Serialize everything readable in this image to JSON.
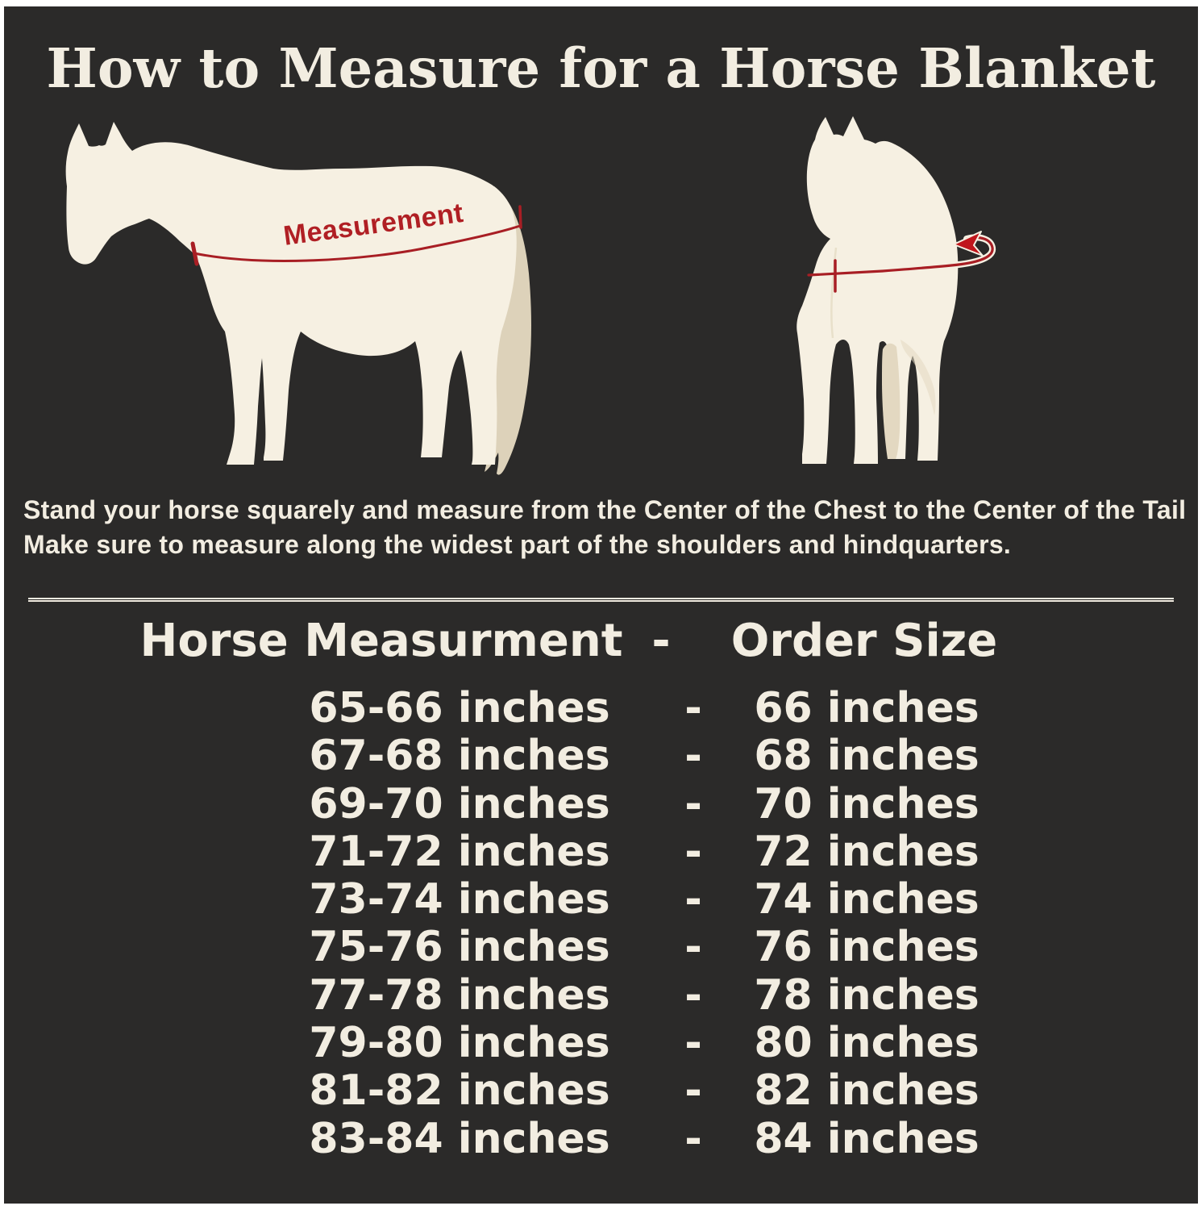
{
  "title": "How to Measure for a Horse Blanket",
  "colors": {
    "background": "#2b2a29",
    "border": "#ffffff",
    "cream_text": "#f2ede1",
    "horse_body": "#f6f0e2",
    "horse_shade": "#ddd2ba",
    "accent_red": "#a81e24"
  },
  "diagram": {
    "measurement_label": "Measurement",
    "side_horse_icon": "horse-side-view-silhouette",
    "front_horse_icon": "horse-front-view-silhouette"
  },
  "instructions": {
    "line1": "Stand your horse squarely and measure from the Center of the Chest to the Center of the Tail",
    "line2": "Make sure to measure along the widest part of the shoulders and hindquarters."
  },
  "size_table": {
    "header": {
      "measurement": "Horse Measurment",
      "separator": "-",
      "order": "Order Size"
    },
    "rows": [
      {
        "measurement": "65-66 inches",
        "separator": "-",
        "order": "66 inches"
      },
      {
        "measurement": "67-68 inches",
        "separator": "-",
        "order": "68 inches"
      },
      {
        "measurement": "69-70 inches",
        "separator": "-",
        "order": "70 inches"
      },
      {
        "measurement": "71-72 inches",
        "separator": "-",
        "order": "72 inches"
      },
      {
        "measurement": "73-74 inches",
        "separator": "-",
        "order": "74 inches"
      },
      {
        "measurement": "75-76 inches",
        "separator": "-",
        "order": "76 inches"
      },
      {
        "measurement": "77-78 inches",
        "separator": "-",
        "order": "78 inches"
      },
      {
        "measurement": "79-80 inches",
        "separator": "-",
        "order": "80 inches"
      },
      {
        "measurement": "81-82 inches",
        "separator": "-",
        "order": "82 inches"
      },
      {
        "measurement": "83-84 inches",
        "separator": "-",
        "order": "84 inches"
      }
    ]
  }
}
